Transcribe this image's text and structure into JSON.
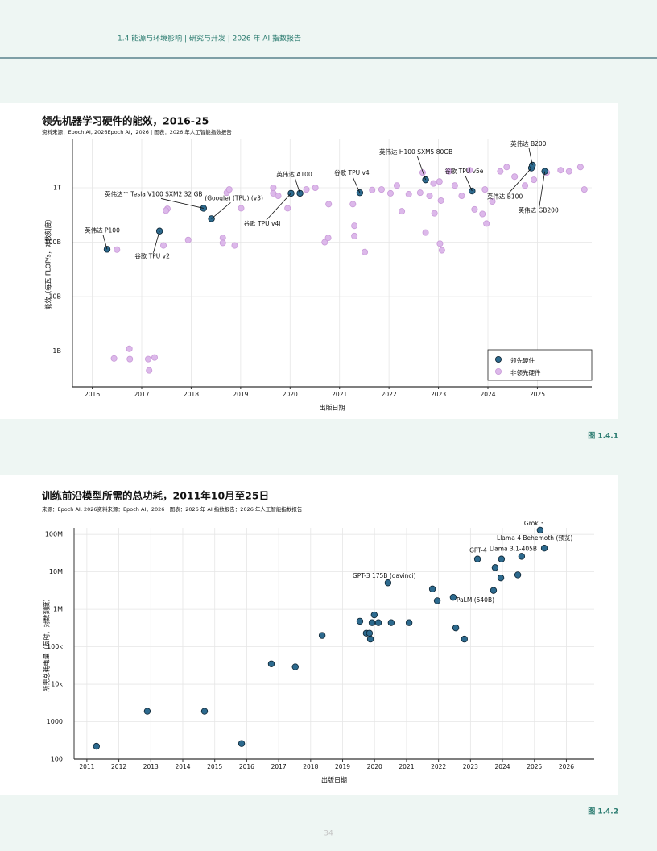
{
  "header": "1.4 能源与环境影响 | 研究与开发 | 2026 年 AI 指数报告",
  "page_number": 34,
  "chart_data": [
    {
      "type": "scatter",
      "title": "领先机器学习硬件的能效，2016-25",
      "subtitle": "资料来源：Epoch AI, 2026Epoch AI，2026 | 图表：2026 年人工智能指数报告",
      "figure": "图 1.4.1",
      "x_label": "出版日期",
      "y_label": "能效（每瓦 FLOP/s，对数刻度）",
      "xlim": [
        2015.6,
        2026.1
      ],
      "xticks": [
        2016,
        2017,
        2018,
        2019,
        2020,
        2021,
        2022,
        2023,
        2024,
        2025
      ],
      "ylim": [
        220000000,
        8000000000000
      ],
      "yscale": "log",
      "yticks": [
        {
          "value": 1000000000,
          "label": "1B"
        },
        {
          "value": 10000000000,
          "label": "10B"
        },
        {
          "value": 100000000000,
          "label": "100B"
        },
        {
          "value": 1000000000000,
          "label": "1T"
        }
      ],
      "grid": true,
      "legend": "lower right",
      "series": [
        {
          "name": "领先硬件",
          "color": "#2d6a8e",
          "x": [
            2016.3,
            2017.36,
            2018.25,
            2018.41,
            2020.02,
            2020.2,
            2021.41,
            2022.74,
            2023.68,
            2024.88,
            2024.9,
            2025.15
          ],
          "values": [
            74000000000,
            160000000000,
            420000000000,
            270000000000,
            790000000000,
            790000000000,
            810000000000,
            1400000000000,
            870000000000,
            2300000000000,
            2600000000000,
            2000000000000
          ],
          "labels": [
            "英伟达 P100",
            "谷歌 TPU v2",
            "英伟达™ Tesla V100 SXM2 32 GB",
            "(Google) (TPU) (v3)",
            "谷歌 TPU v4i",
            "英伟达 A100",
            "谷歌 TPU v4",
            "英伟达 H100 SXM5 80GB",
            "谷歌 TPU v5e",
            "英伟达 B100",
            "英伟达 B200",
            "英伟达 GB200"
          ]
        },
        {
          "name": "非领先硬件",
          "color": "#dcb8ea",
          "x": [
            2016.5,
            2016.44,
            2016.75,
            2016.76,
            2017.13,
            2017.26,
            2017.15,
            2017.52,
            2017.49,
            2017.44,
            2017.94,
            2018.64,
            2018.64,
            2018.72,
            2018.77,
            2018.88,
            2019.01,
            2019.66,
            2019.66,
            2019.76,
            2019.95,
            2020.33,
            2020.51,
            2020.78,
            2020.7,
            2020.77,
            2021.3,
            2021.3,
            2021.51,
            2021.27,
            2021.66,
            2021.85,
            2022.03,
            2022.16,
            2022.26,
            2022.4,
            2022.63,
            2022.74,
            2022.68,
            2022.82,
            2022.9,
            2022.92,
            2023.02,
            2023.03,
            2023.07,
            2023.05,
            2023.21,
            2023.33,
            2023.47,
            2023.63,
            2023.73,
            2023.89,
            2023.97,
            2023.94,
            2024.09,
            2024.25,
            2024.38,
            2024.54,
            2024.75,
            2024.93,
            2025.19,
            2025.47,
            2025.64,
            2025.87,
            2025.95
          ],
          "values": [
            73000000000,
            730000000,
            1100000000,
            710000000,
            710000000,
            760000000,
            440000000,
            410000000000,
            380000000000,
            87000000000,
            110000000000,
            120000000000,
            97000000000,
            810000000000,
            930000000000,
            87000000000,
            420000000000,
            1000000000000,
            790000000000,
            710000000000,
            420000000000,
            930000000000,
            1000000000000,
            500000000000,
            100000000000,
            120000000000,
            200000000000,
            130000000000,
            66000000000,
            500000000000,
            910000000000,
            930000000000,
            790000000000,
            1100000000000,
            370000000000,
            760000000000,
            810000000000,
            150000000000,
            1900000000000,
            710000000000,
            1200000000000,
            340000000000,
            1300000000000,
            94000000000,
            71000000000,
            580000000000,
            2000000000000,
            1100000000000,
            710000000000,
            2100000000000,
            400000000000,
            330000000000,
            220000000000,
            930000000000,
            560000000000,
            2000000000000,
            2400000000000,
            1600000000000,
            1100000000000,
            1400000000000,
            1900000000000,
            2100000000000,
            2000000000000,
            2400000000000,
            930000000000
          ]
        }
      ]
    },
    {
      "type": "scatter",
      "title": "训练前沿模型所需的总功耗，2011年10月至25日",
      "subtitle": "来源：Epoch AI, 2026资料来源：Epoch AI，2026 | 图表：2026 年 AI 指数报告：2026 年人工智能指数报告",
      "figure": "图 1.4.2",
      "x_label": "出版日期",
      "y_label": "所需总耗电量（瓦时，对数刻度）",
      "xlim": [
        2010.6,
        2026.87
      ],
      "xticks": [
        2011,
        2012,
        2013,
        2014,
        2015,
        2016,
        2017,
        2018,
        2019,
        2020,
        2021,
        2022,
        2023,
        2024,
        2025,
        2026
      ],
      "ylim": [
        100,
        150000000
      ],
      "yscale": "log",
      "yticks": [
        100,
        1000,
        {
          "value": 10000,
          "label": "10k"
        },
        {
          "value": 100000,
          "label": "100k"
        },
        {
          "value": 1000000,
          "label": "1M"
        },
        {
          "value": 10000000,
          "label": "10M"
        },
        {
          "value": 100000000,
          "label": "100M"
        }
      ],
      "grid": true,
      "series": [
        {
          "color": "#2d6a8e",
          "x": [
            2011.3,
            2012.89,
            2014.68,
            2015.84,
            2016.77,
            2017.52,
            2018.36,
            2019.54,
            2019.74,
            2019.84,
            2019.87,
            2019.92,
            2019.99,
            2020.12,
            2020.52,
            2020.42,
            2021.08,
            2021.81,
            2021.96,
            2022.46,
            2022.54,
            2022.81,
            2023.22,
            2023.72,
            2023.77,
            2023.95,
            2023.97,
            2024.48,
            2024.6,
            2025.18,
            2025.31
          ],
          "values": [
            220,
            1900,
            1900,
            260,
            35000,
            29000,
            200000,
            480000,
            230000,
            230000,
            160000,
            440000,
            710000,
            440000,
            440000,
            5100000,
            440000,
            3500000,
            1700000,
            2100000,
            320000,
            160000,
            22000000,
            3200000,
            13000000,
            6900000,
            22000000,
            8300000,
            26000000,
            130000000,
            43000000
          ],
          "labels": [
            null,
            null,
            null,
            null,
            null,
            null,
            null,
            null,
            null,
            null,
            null,
            null,
            null,
            null,
            null,
            "GPT-3 175B (davinci)",
            null,
            null,
            null,
            "PaLM (540B)",
            null,
            null,
            "GPT-4",
            null,
            null,
            null,
            "Llama 3.1-405B",
            null,
            null,
            "Grok 3",
            "Llama 4 Behemoth (预览)"
          ]
        }
      ]
    }
  ]
}
